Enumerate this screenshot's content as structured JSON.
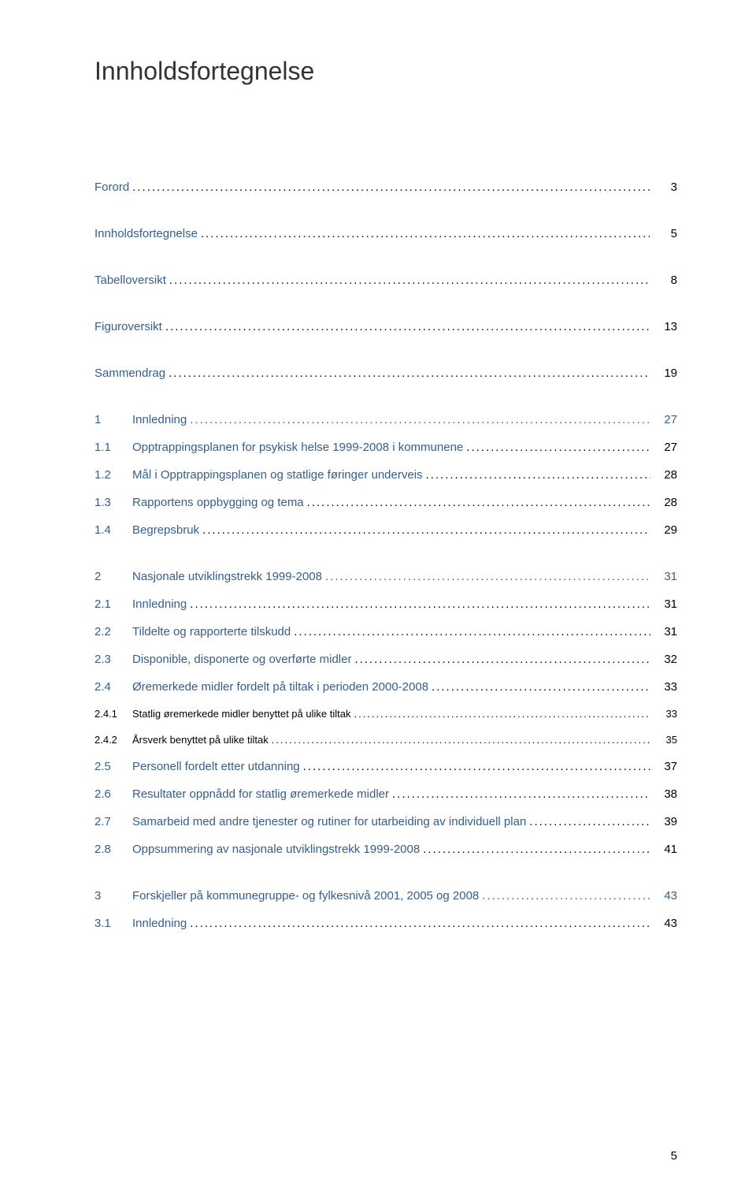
{
  "title": "Innholdsfortegnelse",
  "page_number": "5",
  "colors": {
    "link": "#355e8b",
    "text": "#000000",
    "background": "#ffffff"
  },
  "typography": {
    "title_fontsize": 32,
    "body_fontsize": 15,
    "subsub_fontsize": 13,
    "font_family": "Verdana"
  },
  "entries": [
    {
      "level": "top",
      "num": "",
      "text": "Forord",
      "page": "3",
      "gap_after": true
    },
    {
      "level": "top",
      "num": "",
      "text": "Innholdsfortegnelse",
      "page": "5",
      "gap_after": true
    },
    {
      "level": "top",
      "num": "",
      "text": "Tabelloversikt",
      "page": "8",
      "gap_after": true
    },
    {
      "level": "top",
      "num": "",
      "text": "Figuroversikt",
      "page": "13",
      "gap_after": true
    },
    {
      "level": "top",
      "num": "",
      "text": "Sammendrag",
      "page": "19",
      "gap_after": true
    },
    {
      "level": "chapter",
      "num": "1",
      "text": "Innledning",
      "page": "27"
    },
    {
      "level": "sub",
      "num": "1.1",
      "text": "Opptrappingsplanen for psykisk helse 1999-2008 i kommunene",
      "page": "27"
    },
    {
      "level": "sub",
      "num": "1.2",
      "text": "Mål i Opptrappingsplanen og statlige føringer underveis",
      "page": "28"
    },
    {
      "level": "sub",
      "num": "1.3",
      "text": "Rapportens oppbygging og tema",
      "page": "28"
    },
    {
      "level": "sub",
      "num": "1.4",
      "text": "Begrepsbruk",
      "page": "29",
      "gap_after": true
    },
    {
      "level": "chapter",
      "num": "2",
      "text": "Nasjonale utviklingstrekk 1999-2008",
      "page": "31"
    },
    {
      "level": "sub",
      "num": "2.1",
      "text": "Innledning",
      "page": "31"
    },
    {
      "level": "sub",
      "num": "2.2",
      "text": "Tildelte og rapporterte tilskudd",
      "page": "31"
    },
    {
      "level": "sub",
      "num": "2.3",
      "text": "Disponible, disponerte og overførte midler",
      "page": "32"
    },
    {
      "level": "sub",
      "num": "2.4",
      "text": "Øremerkede midler fordelt på tiltak i perioden 2000-2008",
      "page": "33"
    },
    {
      "level": "subsub",
      "num": "2.4.1",
      "text": "Statlig øremerkede midler benyttet på ulike tiltak",
      "page": "33"
    },
    {
      "level": "subsub",
      "num": "2.4.2",
      "text": "Årsverk benyttet på ulike tiltak",
      "page": "35"
    },
    {
      "level": "sub",
      "num": "2.5",
      "text": "Personell fordelt etter utdanning",
      "page": "37"
    },
    {
      "level": "sub",
      "num": "2.6",
      "text": "Resultater oppnådd for statlig øremerkede midler",
      "page": "38"
    },
    {
      "level": "sub",
      "num": "2.7",
      "text": "Samarbeid med andre tjenester og rutiner for utarbeiding av individuell plan",
      "page": "39"
    },
    {
      "level": "sub",
      "num": "2.8",
      "text": "Oppsummering av nasjonale utviklingstrekk 1999-2008",
      "page": "41",
      "gap_after": true
    },
    {
      "level": "chapter",
      "num": "3",
      "text": "Forskjeller på kommunegruppe- og fylkesnivå 2001, 2005 og 2008",
      "page": "43"
    },
    {
      "level": "sub",
      "num": "3.1",
      "text": "Innledning",
      "page": "43"
    }
  ]
}
